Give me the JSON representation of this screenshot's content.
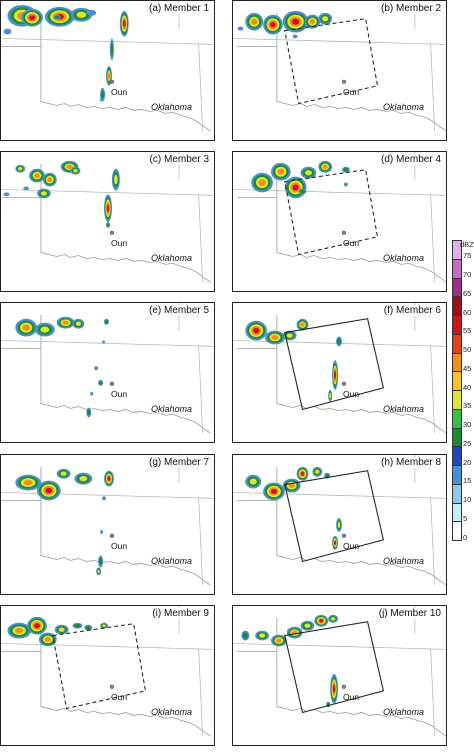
{
  "figure": {
    "panels": [
      {
        "label": "(a) Member 1",
        "box": "none",
        "echoes": [
          {
            "at": [
              6,
              4
            ],
            "w": 30,
            "h": 22,
            "peak": 50
          },
          {
            "at": [
              20,
              8
            ],
            "w": 22,
            "h": 18,
            "peak": 55
          },
          {
            "at": [
              44,
              6
            ],
            "w": 30,
            "h": 20,
            "peak": 60
          },
          {
            "at": [
              70,
              7
            ],
            "w": 22,
            "h": 14,
            "peak": 40
          },
          {
            "at": [
              86,
              9
            ],
            "w": 10,
            "h": 6,
            "peak": 20
          },
          {
            "at": [
              2,
              28
            ],
            "w": 8,
            "h": 6,
            "peak": 20
          },
          {
            "at": [
              53,
              14
            ],
            "w": 7,
            "h": 5,
            "peak": 25
          },
          {
            "at": [
              120,
              10
            ],
            "w": 9,
            "h": 26,
            "peak": 55
          },
          {
            "at": [
              110,
              38
            ],
            "w": 4,
            "h": 22,
            "peak": 30
          },
          {
            "at": [
              106,
              66
            ],
            "w": 6,
            "h": 20,
            "peak": 45
          },
          {
            "at": [
              100,
              88
            ],
            "w": 5,
            "h": 14,
            "peak": 30
          },
          {
            "at": [
              100,
              98
            ],
            "w": 3,
            "h": 4,
            "peak": 15
          }
        ]
      },
      {
        "label": "(b) Member 2",
        "box": "dashed",
        "echoes": [
          {
            "at": [
              244,
              12
            ],
            "w": 18,
            "h": 18,
            "peak": 45
          },
          {
            "at": [
              262,
              14
            ],
            "w": 20,
            "h": 20,
            "peak": 55
          },
          {
            "at": [
              282,
              10
            ],
            "w": 26,
            "h": 22,
            "peak": 60
          },
          {
            "at": [
              304,
              14
            ],
            "w": 16,
            "h": 14,
            "peak": 45
          },
          {
            "at": [
              318,
              12
            ],
            "w": 14,
            "h": 12,
            "peak": 40
          },
          {
            "at": [
              236,
              26
            ],
            "w": 6,
            "h": 4,
            "peak": 15
          },
          {
            "at": [
              292,
              34
            ],
            "w": 5,
            "h": 4,
            "peak": 20
          }
        ]
      },
      {
        "label": "(c) Member 3",
        "box": "none",
        "echoes": [
          {
            "at": [
              14,
              164
            ],
            "w": 10,
            "h": 8,
            "peak": 35
          },
          {
            "at": [
              28,
              168
            ],
            "w": 16,
            "h": 14,
            "peak": 50
          },
          {
            "at": [
              42,
              172
            ],
            "w": 14,
            "h": 14,
            "peak": 45
          },
          {
            "at": [
              36,
              188
            ],
            "w": 14,
            "h": 10,
            "peak": 40
          },
          {
            "at": [
              60,
              160
            ],
            "w": 18,
            "h": 12,
            "peak": 50
          },
          {
            "at": [
              70,
              166
            ],
            "w": 10,
            "h": 8,
            "peak": 35
          },
          {
            "at": [
              22,
              186
            ],
            "w": 6,
            "h": 4,
            "peak": 20
          },
          {
            "at": [
              2,
              192
            ],
            "w": 6,
            "h": 4,
            "peak": 15
          },
          {
            "at": [
              112,
              168
            ],
            "w": 8,
            "h": 22,
            "peak": 40
          },
          {
            "at": [
              104,
              194
            ],
            "w": 8,
            "h": 28,
            "peak": 60
          },
          {
            "at": [
              106,
              222
            ],
            "w": 4,
            "h": 6,
            "peak": 30
          }
        ]
      },
      {
        "label": "(d) Member 4",
        "box": "dashed",
        "echoes": [
          {
            "at": [
              250,
              172
            ],
            "w": 22,
            "h": 20,
            "peak": 50
          },
          {
            "at": [
              270,
              162
            ],
            "w": 20,
            "h": 18,
            "peak": 50
          },
          {
            "at": [
              284,
              176
            ],
            "w": 22,
            "h": 22,
            "peak": 60
          },
          {
            "at": [
              300,
              166
            ],
            "w": 16,
            "h": 12,
            "peak": 40
          },
          {
            "at": [
              318,
              160
            ],
            "w": 14,
            "h": 12,
            "peak": 45
          },
          {
            "at": [
              342,
              166
            ],
            "w": 8,
            "h": 6,
            "peak": 30
          },
          {
            "at": [
              344,
              182
            ],
            "w": 4,
            "h": 4,
            "peak": 15
          },
          {
            "at": [
              298,
              188
            ],
            "w": 8,
            "h": 6,
            "peak": 25
          }
        ]
      },
      {
        "label": "(e) Member 5",
        "box": "none",
        "echoes": [
          {
            "at": [
              14,
              318
            ],
            "w": 22,
            "h": 18,
            "peak": 50
          },
          {
            "at": [
              34,
              322
            ],
            "w": 20,
            "h": 14,
            "peak": 40
          },
          {
            "at": [
              56,
              316
            ],
            "w": 18,
            "h": 12,
            "peak": 45
          },
          {
            "at": [
              72,
              318
            ],
            "w": 12,
            "h": 10,
            "peak": 40
          },
          {
            "at": [
              104,
              318
            ],
            "w": 5,
            "h": 6,
            "peak": 25
          },
          {
            "at": [
              102,
              340
            ],
            "w": 3,
            "h": 3,
            "peak": 15
          },
          {
            "at": [
              94,
              366
            ],
            "w": 4,
            "h": 4,
            "peak": 20
          },
          {
            "at": [
              98,
              380
            ],
            "w": 5,
            "h": 6,
            "peak": 25
          },
          {
            "at": [
              90,
              392
            ],
            "w": 3,
            "h": 4,
            "peak": 15
          },
          {
            "at": [
              86,
              408
            ],
            "w": 5,
            "h": 10,
            "peak": 30
          }
        ]
      },
      {
        "label": "(f) Member 6",
        "box": "solid",
        "echoes": [
          {
            "at": [
              244,
              320
            ],
            "w": 22,
            "h": 20,
            "peak": 55
          },
          {
            "at": [
              264,
              330
            ],
            "w": 20,
            "h": 14,
            "peak": 50
          },
          {
            "at": [
              282,
              330
            ],
            "w": 14,
            "h": 10,
            "peak": 40
          },
          {
            "at": [
              296,
              318
            ],
            "w": 12,
            "h": 12,
            "peak": 50
          },
          {
            "at": [
              336,
              336
            ],
            "w": 6,
            "h": 10,
            "peak": 25
          },
          {
            "at": [
              332,
              360
            ],
            "w": 6,
            "h": 30,
            "peak": 55
          },
          {
            "at": [
              328,
              390
            ],
            "w": 4,
            "h": 12,
            "peak": 35
          }
        ]
      },
      {
        "label": "(g) Member 7",
        "box": "none",
        "echoes": [
          {
            "at": [
              14,
              474
            ],
            "w": 26,
            "h": 16,
            "peak": 50
          },
          {
            "at": [
              36,
              480
            ],
            "w": 24,
            "h": 20,
            "peak": 60
          },
          {
            "at": [
              56,
              468
            ],
            "w": 14,
            "h": 10,
            "peak": 35
          },
          {
            "at": [
              74,
              472
            ],
            "w": 18,
            "h": 12,
            "peak": 40
          },
          {
            "at": [
              104,
              470
            ],
            "w": 10,
            "h": 16,
            "peak": 55
          },
          {
            "at": [
              102,
              496
            ],
            "w": 4,
            "h": 4,
            "peak": 20
          },
          {
            "at": [
              100,
              530
            ],
            "w": 3,
            "h": 4,
            "peak": 15
          },
          {
            "at": [
              98,
              556
            ],
            "w": 5,
            "h": 12,
            "peak": 30
          },
          {
            "at": [
              96,
              568
            ],
            "w": 5,
            "h": 8,
            "peak": 35
          }
        ]
      },
      {
        "label": "(h) Member 8",
        "box": "solid",
        "echoes": [
          {
            "at": [
              244,
              474
            ],
            "w": 16,
            "h": 14,
            "peak": 40
          },
          {
            "at": [
              262,
              482
            ],
            "w": 22,
            "h": 18,
            "peak": 55
          },
          {
            "at": [
              282,
              478
            ],
            "w": 18,
            "h": 14,
            "peak": 45
          },
          {
            "at": [
              296,
              466
            ],
            "w": 12,
            "h": 14,
            "peak": 60
          },
          {
            "at": [
              312,
              466
            ],
            "w": 10,
            "h": 10,
            "peak": 40
          },
          {
            "at": [
              324,
              472
            ],
            "w": 6,
            "h": 6,
            "peak": 25
          },
          {
            "at": [
              336,
              518
            ],
            "w": 6,
            "h": 14,
            "peak": 40
          },
          {
            "at": [
              332,
              536
            ],
            "w": 6,
            "h": 14,
            "peak": 55
          }
        ]
      },
      {
        "label": "(i) Member 9",
        "box": "dashed",
        "echoes": [
          {
            "at": [
              6,
              622
            ],
            "w": 24,
            "h": 16,
            "peak": 45
          },
          {
            "at": [
              26,
              616
            ],
            "w": 20,
            "h": 18,
            "peak": 55
          },
          {
            "at": [
              38,
              632
            ],
            "w": 18,
            "h": 14,
            "peak": 50
          },
          {
            "at": [
              54,
              624
            ],
            "w": 14,
            "h": 10,
            "peak": 35
          },
          {
            "at": [
              72,
              622
            ],
            "w": 10,
            "h": 6,
            "peak": 25
          },
          {
            "at": [
              84,
              624
            ],
            "w": 8,
            "h": 6,
            "peak": 30
          },
          {
            "at": [
              100,
              622
            ],
            "w": 8,
            "h": 6,
            "peak": 40
          }
        ]
      },
      {
        "label": "(j) Member 10",
        "box": "solid",
        "echoes": [
          {
            "at": [
              240,
              630
            ],
            "w": 8,
            "h": 10,
            "peak": 30
          },
          {
            "at": [
              254,
              630
            ],
            "w": 14,
            "h": 10,
            "peak": 40
          },
          {
            "at": [
              270,
              634
            ],
            "w": 16,
            "h": 12,
            "peak": 45
          },
          {
            "at": [
              286,
              626
            ],
            "w": 16,
            "h": 12,
            "peak": 50
          },
          {
            "at": [
              300,
              620
            ],
            "w": 14,
            "h": 10,
            "peak": 40
          },
          {
            "at": [
              314,
              614
            ],
            "w": 14,
            "h": 12,
            "peak": 55
          },
          {
            "at": [
              328,
              614
            ],
            "w": 10,
            "h": 8,
            "peak": 35
          },
          {
            "at": [
              330,
              674
            ],
            "w": 8,
            "h": 30,
            "peak": 55
          },
          {
            "at": [
              326,
              702
            ],
            "w": 4,
            "h": 6,
            "peak": 25
          }
        ]
      }
    ],
    "station_label": "Oun",
    "state_label": "Oklahoma",
    "colorbar": {
      "unit": "dBZ",
      "levels": [
        "0",
        "5",
        "10",
        "15",
        "20",
        "25",
        "30",
        "35",
        "40",
        "45",
        "50",
        "55",
        "60",
        "65",
        "70",
        "75"
      ],
      "colors": [
        "#ffffff",
        "#c8f0f4",
        "#8ecae8",
        "#4a8fd4",
        "#2446b8",
        "#1f8a2e",
        "#36c04a",
        "#dfe43a",
        "#f7c324",
        "#ef8f1e",
        "#e2441e",
        "#c81818",
        "#9b0f1c",
        "#a03080",
        "#c070c0",
        "#e0b0e8"
      ]
    }
  }
}
